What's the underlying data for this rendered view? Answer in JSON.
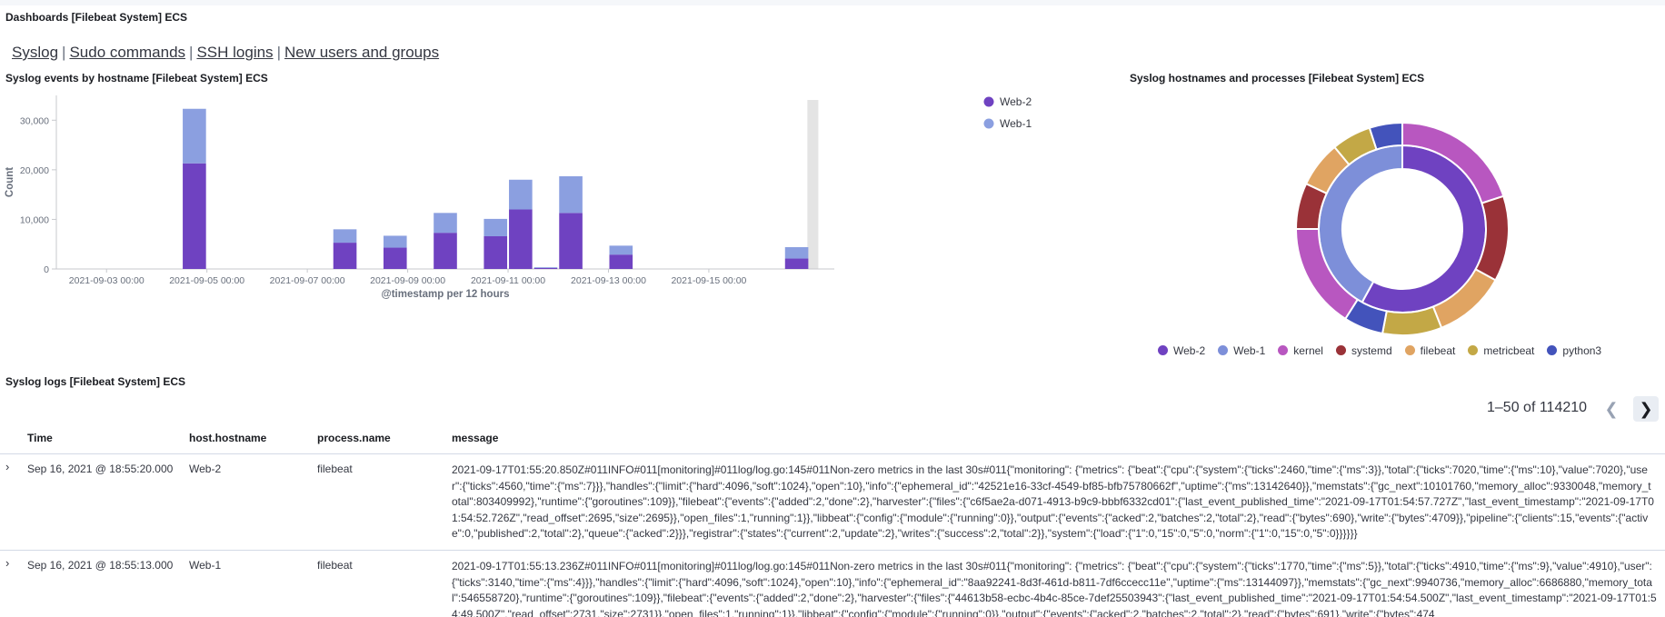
{
  "page": {
    "title": "Dashboards [Filebeat System] ECS"
  },
  "nav": {
    "links": [
      "Syslog",
      "Sudo commands",
      "SSH logins",
      "New users and groups"
    ],
    "separator": "|"
  },
  "bar_panel": {
    "title": "Syslog events by hostname [Filebeat System] ECS"
  },
  "donut_panel": {
    "title": "Syslog hostnames and processes [Filebeat System] ECS",
    "legend": [
      {
        "name": "Web-2",
        "color": "#6f42c1"
      },
      {
        "name": "Web-1",
        "color": "#7d8fd9"
      },
      {
        "name": "kernel",
        "color": "#b857c0"
      },
      {
        "name": "systemd",
        "color": "#9a3238"
      },
      {
        "name": "filebeat",
        "color": "#e0a462"
      },
      {
        "name": "metricbeat",
        "color": "#c3a846"
      },
      {
        "name": "python3",
        "color": "#4353bb"
      }
    ]
  },
  "chart_data": [
    {
      "type": "bar",
      "stacked": true,
      "xlabel": "@timestamp per 12 hours",
      "ylabel": "Count",
      "ylim": [
        0,
        35000
      ],
      "yticks": [
        0,
        10000,
        20000,
        30000
      ],
      "ytick_labels": [
        "0",
        "10,000",
        "20,000",
        "30,000"
      ],
      "xtick_labels": [
        "2021-09-03 00:00",
        "2021-09-05 00:00",
        "2021-09-07 00:00",
        "2021-09-09 00:00",
        "2021-09-11 00:00",
        "2021-09-13 00:00",
        "2021-09-15 00:00"
      ],
      "legend_position": "top-right",
      "colors": {
        "Web-2": "#6f42c1",
        "Web-1": "#8b9fe0"
      },
      "x": [
        "2021-09-04 12:00",
        "2021-09-07 12:00",
        "2021-09-08 12:00",
        "2021-09-09 12:00",
        "2021-09-10 12:00",
        "2021-09-11 00:00",
        "2021-09-11 12:00",
        "2021-09-12 00:00",
        "2021-09-13 00:00",
        "2021-09-16 12:00"
      ],
      "series": [
        {
          "name": "Web-2",
          "values": [
            21300,
            5300,
            4300,
            7300,
            6600,
            12000,
            200,
            11300,
            2900,
            2100
          ]
        },
        {
          "name": "Web-1",
          "values": [
            11000,
            2700,
            2400,
            4000,
            3500,
            6000,
            150,
            7400,
            1800,
            2300
          ]
        }
      ]
    },
    {
      "type": "pie",
      "donut": true,
      "inner": [
        {
          "name": "Web-2",
          "value": 58
        },
        {
          "name": "Web-1",
          "value": 42
        }
      ],
      "outer": [
        {
          "name": "kernel",
          "value": 20,
          "parent": "Web-2"
        },
        {
          "name": "systemd",
          "value": 13,
          "parent": "Web-2"
        },
        {
          "name": "filebeat",
          "value": 11,
          "parent": "Web-2"
        },
        {
          "name": "metricbeat",
          "value": 9,
          "parent": "Web-2"
        },
        {
          "name": "python3",
          "value": 6,
          "parent": "Web-2"
        },
        {
          "name": "kernel",
          "value": 16,
          "parent": "Web-1"
        },
        {
          "name": "systemd",
          "value": 7,
          "parent": "Web-1"
        },
        {
          "name": "filebeat",
          "value": 7,
          "parent": "Web-1"
        },
        {
          "name": "metricbeat",
          "value": 6,
          "parent": "Web-1"
        },
        {
          "name": "python3",
          "value": 5,
          "parent": "Web-1"
        }
      ]
    }
  ],
  "logs_panel": {
    "title": "Syslog logs [Filebeat System] ECS",
    "pagination": "1–50 of 114210",
    "columns": [
      "Time",
      "host.hostname",
      "process.name",
      "message"
    ],
    "rows": [
      {
        "time": "Sep 16, 2021 @ 18:55:20.000",
        "host": "Web-2",
        "process": "filebeat",
        "message": "2021-09-17T01:55:20.850Z#011INFO#011[monitoring]#011log/log.go:145#011Non-zero metrics in the last 30s#011{\"monitoring\": {\"metrics\": {\"beat\":{\"cpu\":{\"system\":{\"ticks\":2460,\"time\":{\"ms\":3}},\"total\":{\"ticks\":7020,\"time\":{\"ms\":10},\"value\":7020},\"user\":{\"ticks\":4560,\"time\":{\"ms\":7}}},\"handles\":{\"limit\":{\"hard\":4096,\"soft\":1024},\"open\":10},\"info\":{\"ephemeral_id\":\"42521e16-33cf-4549-bf85-bfb75780662f\",\"uptime\":{\"ms\":13142640}},\"memstats\":{\"gc_next\":10101760,\"memory_alloc\":9330048,\"memory_total\":803409992},\"runtime\":{\"goroutines\":109}},\"filebeat\":{\"events\":{\"added\":2,\"done\":2},\"harvester\":{\"files\":{\"c6f5ae2a-d071-4913-b9c9-bbbf6332cd01\":{\"last_event_published_time\":\"2021-09-17T01:54:57.727Z\",\"last_event_timestamp\":\"2021-09-17T01:54:52.726Z\",\"read_offset\":2695,\"size\":2695}},\"open_files\":1,\"running\":1}},\"libbeat\":{\"config\":{\"module\":{\"running\":0}},\"output\":{\"events\":{\"acked\":2,\"batches\":2,\"total\":2},\"read\":{\"bytes\":690},\"write\":{\"bytes\":4709}},\"pipeline\":{\"clients\":15,\"events\":{\"active\":0,\"published\":2,\"total\":2},\"queue\":{\"acked\":2}}},\"registrar\":{\"states\":{\"current\":2,\"update\":2},\"writes\":{\"success\":2,\"total\":2}},\"system\":{\"load\":{\"1\":0,\"15\":0,\"5\":0,\"norm\":{\"1\":0,\"15\":0,\"5\":0}}}}}}"
      },
      {
        "time": "Sep 16, 2021 @ 18:55:13.000",
        "host": "Web-1",
        "process": "filebeat",
        "message": "2021-09-17T01:55:13.236Z#011INFO#011[monitoring]#011log/log.go:145#011Non-zero metrics in the last 30s#011{\"monitoring\": {\"metrics\": {\"beat\":{\"cpu\":{\"system\":{\"ticks\":1770,\"time\":{\"ms\":5}},\"total\":{\"ticks\":4910,\"time\":{\"ms\":9},\"value\":4910},\"user\":{\"ticks\":3140,\"time\":{\"ms\":4}}},\"handles\":{\"limit\":{\"hard\":4096,\"soft\":1024},\"open\":10},\"info\":{\"ephemeral_id\":\"8aa92241-8d3f-461d-b811-7df6ccecc11e\",\"uptime\":{\"ms\":13144097}},\"memstats\":{\"gc_next\":9940736,\"memory_alloc\":6686880,\"memory_total\":546558720},\"runtime\":{\"goroutines\":109}},\"filebeat\":{\"events\":{\"added\":2,\"done\":2},\"harvester\":{\"files\":{\"44613b58-ecbc-4b4c-85ce-7def25503943\":{\"last_event_published_time\":\"2021-09-17T01:54:54.500Z\",\"last_event_timestamp\":\"2021-09-17T01:54:49.500Z\",\"read_offset\":2731,\"size\":2731}},\"open_files\":1,\"running\":1}},\"libbeat\":{\"config\":{\"module\":{\"running\":0}},\"output\":{\"events\":{\"acked\":2,\"batches\":2,\"total\":2},\"read\":{\"bytes\":691},\"write\":{\"bytes\":474"
      }
    ]
  }
}
